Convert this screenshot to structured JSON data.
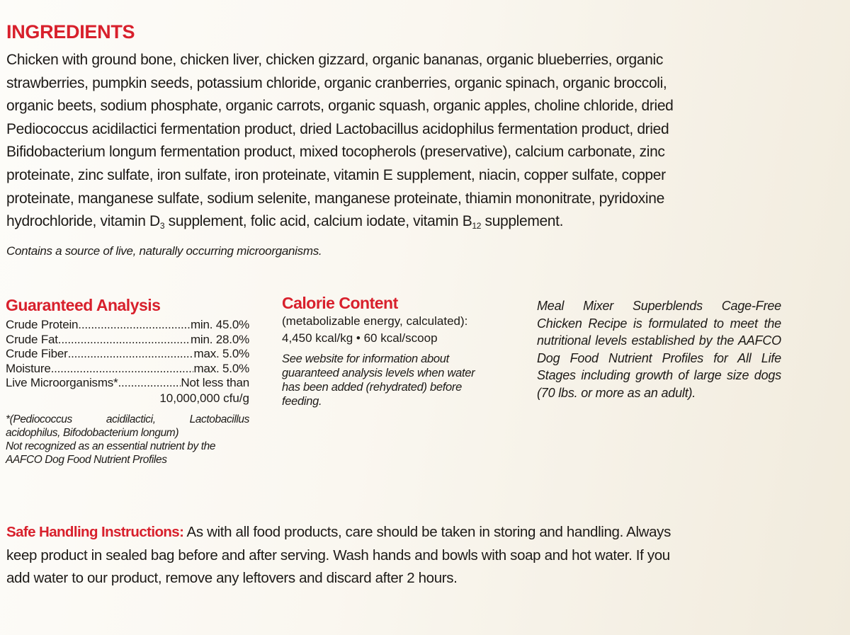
{
  "ingredients": {
    "title": "INGREDIENTS",
    "lines": [
      "Chicken with ground bone, chicken liver, chicken gizzard, organic bananas, organic blueberries, organic",
      "strawberries, pumpkin seeds, potassium chloride, organic cranberries, organic spinach, organic broccoli,",
      "organic beets, sodium phosphate, organic carrots, organic squash, organic apples, choline chloride, dried",
      "Pediococcus acidilactici fermentation product, dried Lactobacillus acidophilus fermentation product, dried",
      "Bifidobacterium longum fermentation product, mixed tocopherols (preservative), calcium carbonate, zinc",
      "proteinate, zinc sulfate, iron sulfate, iron proteinate, vitamin E supplement, niacin, copper sulfate, copper",
      "proteinate, manganese sulfate, sodium selenite, manganese proteinate, thiamin mononitrate, pyridoxine"
    ],
    "last_line": {
      "part1": "hydrochloride, vitamin D",
      "sub1": "3",
      "part2": " supplement, folic acid, calcium iodate, vitamin B",
      "sub2": "12",
      "part3": " supplement."
    },
    "note": "Contains a source of live, naturally occurring microorganisms."
  },
  "guaranteed_analysis": {
    "title": "Guaranteed Analysis",
    "rows": [
      {
        "label": "Crude Protein",
        "value": "min. 45.0%"
      },
      {
        "label": "Crude Fat",
        "value": "min. 28.0%"
      },
      {
        "label": "Crude Fiber",
        "value": "max. 5.0%"
      },
      {
        "label": "Moisture",
        "value": "max. 5.0%"
      },
      {
        "label": "Live Microorganisms*",
        "value": "Not less than"
      }
    ],
    "extra_value": "10,000,000 cfu/g",
    "footnote_line1": "*(Pediococcus acidilactici, Lactobacillus",
    "footnote_line2": "acidophilus, Bifodobacterium longum)",
    "footnote_line3": "Not recognized as an essential nutrient by the",
    "footnote_line4": "AAFCO Dog Food Nutrient Profiles"
  },
  "calorie_content": {
    "title": "Calorie Content",
    "subtitle": "(metabolizable energy, calculated):",
    "value": "4,450 kcal/kg • 60 kcal/scoop",
    "note": "See website for information about guaranteed analysis levels when water has been added (rehydrated) before feeding."
  },
  "aafco_statement": "Meal Mixer Superblends Cage-Free Chicken Recipe is formulated to meet the nutritional levels established by the AAFCO Dog Food Nutrient Profiles for All Life Stages including growth of large size dogs (70 lbs. or more as an adult).",
  "safe_handling": {
    "title": "Safe Handling Instructions:",
    "line1": " As with all food products, care should be taken in storing and handling. Always",
    "line2": "keep product in sealed bag before and after serving. Wash hands and bowls with soap and hot water. If you",
    "line3": "add water to our product, remove any leftovers and discard after 2 hours."
  },
  "colors": {
    "accent_red": "#d8202c",
    "text": "#1d1a17",
    "background": "#faf7f0"
  }
}
